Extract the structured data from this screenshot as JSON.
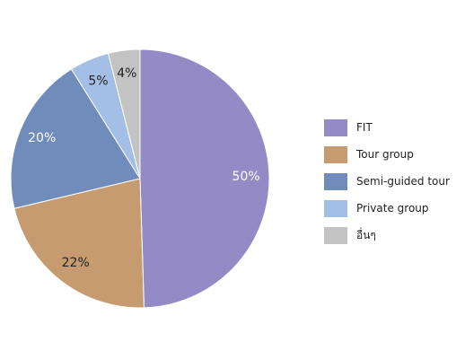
{
  "chart_data": {
    "type": "pie",
    "categories": [
      "FIT",
      "Tour group",
      "Semi-guided tour",
      "Private group",
      "อื่นๆ"
    ],
    "values": [
      50,
      22,
      20,
      5,
      4
    ],
    "data_labels": [
      "50%",
      "22%",
      "20%",
      "5%",
      "4%"
    ],
    "colors": [
      "#948bc6",
      "#c69b70",
      "#6f8cba",
      "#a4bfe6",
      "#c3c3c3"
    ],
    "label_colors": [
      "#ffffff",
      "#222222",
      "#ffffff",
      "#222222",
      "#222222"
    ],
    "start_angle_deg": 0,
    "direction": "clockwise",
    "legend_position": "right"
  }
}
